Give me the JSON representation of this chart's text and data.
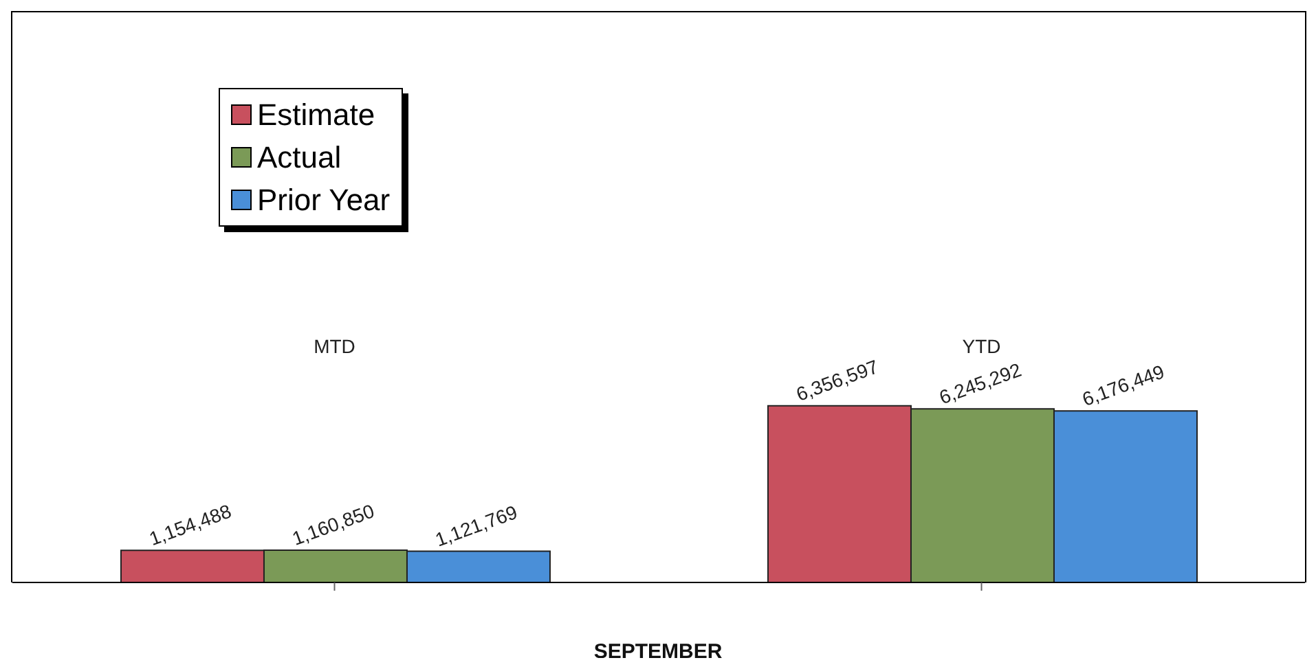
{
  "chart_data": {
    "type": "bar",
    "xlabel": "SEPTEMBER",
    "categories": [
      "MTD",
      "YTD"
    ],
    "series": [
      {
        "name": "Estimate",
        "color": "#c8505e",
        "values": [
          1154488,
          6356597
        ],
        "value_labels": [
          "1,154,488",
          "6,356,597"
        ]
      },
      {
        "name": "Actual",
        "color": "#7b9a57",
        "values": [
          1160850,
          6245292
        ],
        "value_labels": [
          "1,160,850",
          "6,245,292"
        ]
      },
      {
        "name": "Prior Year",
        "color": "#4a8fd8",
        "values": [
          1121769,
          6176449
        ],
        "value_labels": [
          "1,121,769",
          "6,176,449"
        ]
      }
    ],
    "legend": "top left"
  }
}
